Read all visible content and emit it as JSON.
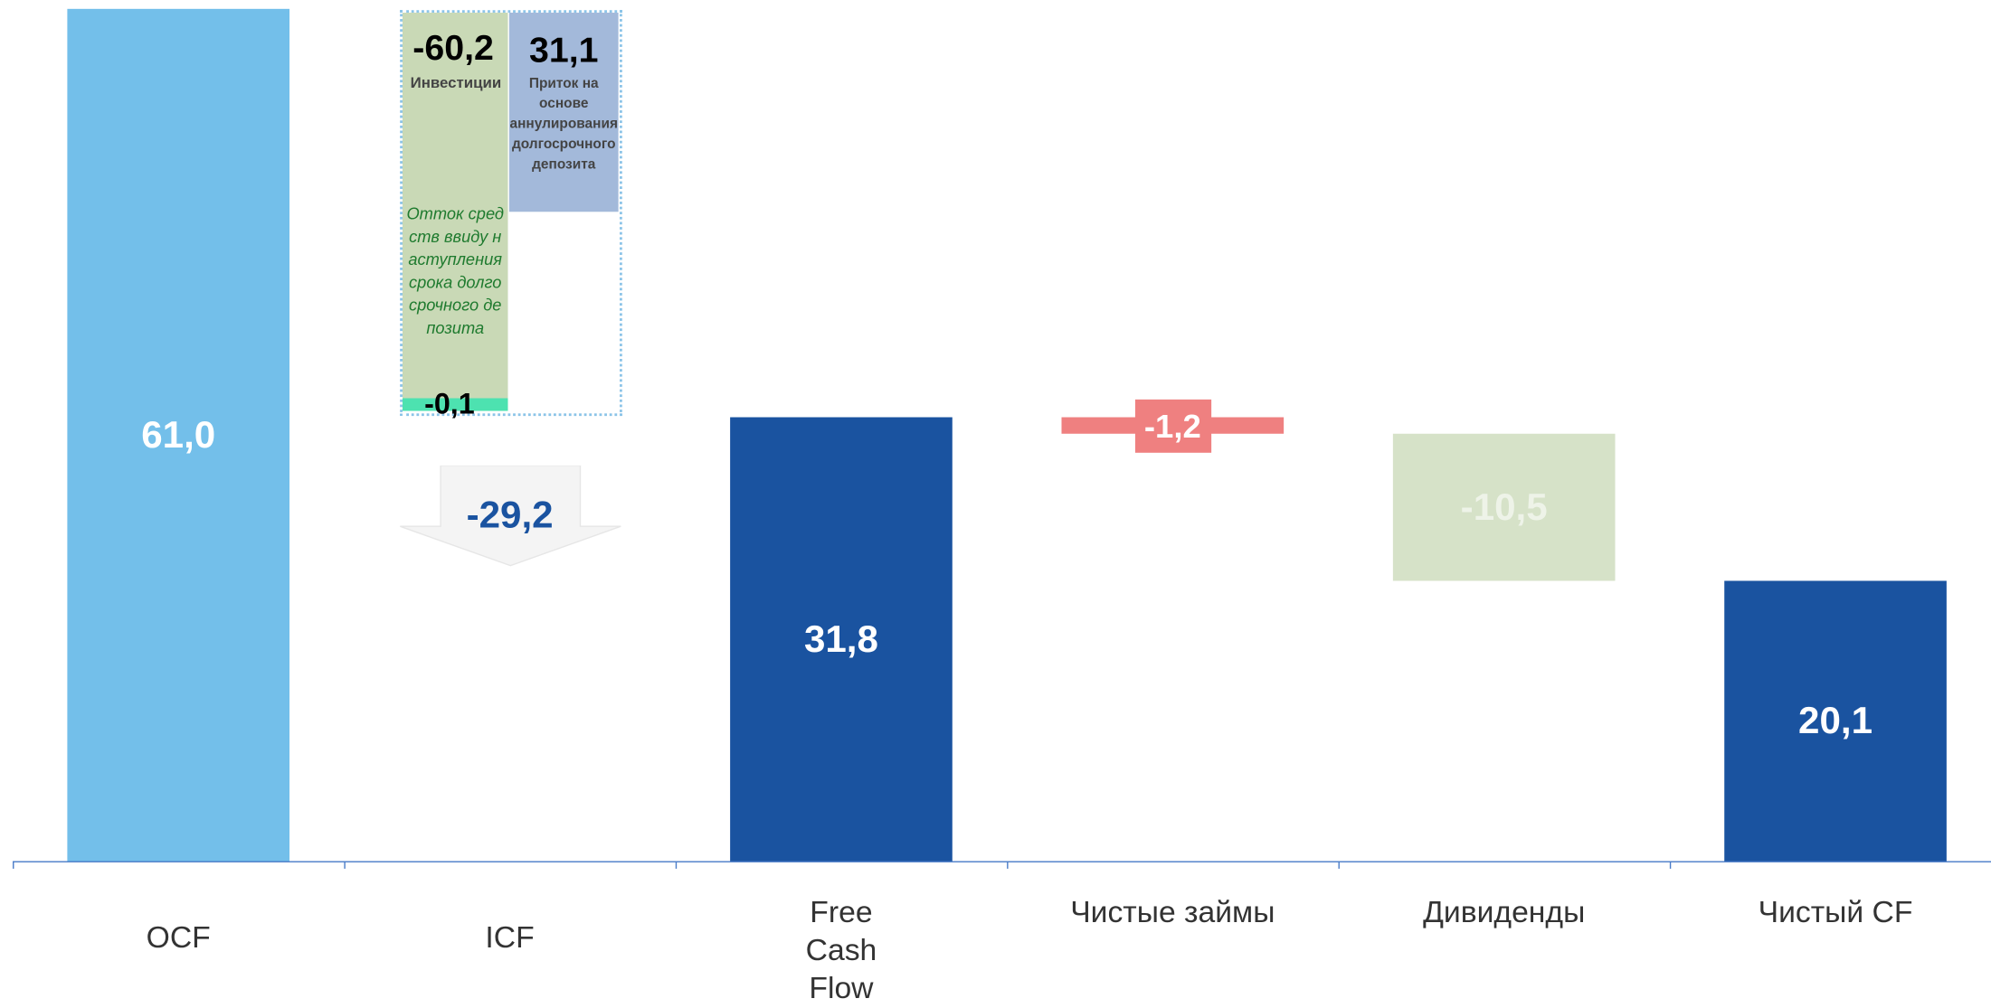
{
  "chart_data": {
    "type": "waterfall",
    "categories": [
      "OCF",
      "ICF",
      "Free Cash Flow",
      "Чистые займы",
      "Дивиденды",
      "Чистый CF"
    ],
    "values": [
      61.0,
      -29.2,
      31.8,
      -1.2,
      -10.5,
      20.1
    ],
    "value_labels": [
      "61,0",
      "-29,2",
      "31,8",
      "-1,2",
      "-10,5",
      "20,1"
    ],
    "is_total": [
      true,
      false,
      true,
      false,
      false,
      true
    ],
    "shapes": [
      "bar",
      "arrow",
      "bar",
      "bar",
      "bar",
      "bar"
    ],
    "colors": [
      "#73bfea",
      "#f4f4f4",
      "#1a53a0",
      "#ef8080",
      "#d6e2c8",
      "#1a53a0"
    ],
    "label_colors": [
      "#ffffff",
      "#1a53a0",
      "#ffffff",
      "#ffffff",
      "#eef3e8",
      "#ffffff"
    ],
    "breakdown": {
      "items": [
        {
          "label": "Инвестиции",
          "value": -60.2,
          "value_label": "-60,2",
          "color": "#c9d9b6"
        },
        {
          "label": "Приток на основе аннулирования долгосрочного депозита",
          "value": 31.1,
          "value_label": "31,1",
          "color": "#a3b9da"
        },
        {
          "label": "Отток средств ввиду наступления срока долгосрочного депозита",
          "value": -0.1,
          "value_label": "-0,1",
          "color": "#4de2b0"
        }
      ]
    }
  }
}
